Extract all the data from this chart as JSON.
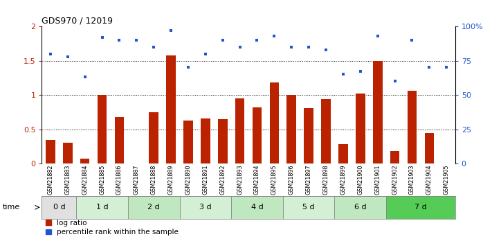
{
  "title": "GDS970 / 12019",
  "samples": [
    "GSM21882",
    "GSM21883",
    "GSM21884",
    "GSM21885",
    "GSM21886",
    "GSM21887",
    "GSM21888",
    "GSM21889",
    "GSM21890",
    "GSM21891",
    "GSM21892",
    "GSM21893",
    "GSM21894",
    "GSM21895",
    "GSM21896",
    "GSM21897",
    "GSM21898",
    "GSM21899",
    "GSM21900",
    "GSM21901",
    "GSM21902",
    "GSM21903",
    "GSM21904",
    "GSM21905"
  ],
  "log_ratio": [
    0.35,
    0.31,
    0.07,
    1.0,
    0.68,
    0.0,
    0.75,
    1.58,
    0.63,
    0.66,
    0.65,
    0.95,
    0.82,
    1.18,
    1.0,
    0.81,
    0.94,
    0.29,
    1.02,
    1.5,
    0.18,
    1.06,
    0.45,
    0.0
  ],
  "percentile": [
    80,
    78,
    63,
    92,
    90,
    90,
    85,
    97,
    70,
    80,
    90,
    85,
    90,
    93,
    85,
    85,
    83,
    65,
    67,
    93,
    60,
    90,
    70,
    70
  ],
  "time_groups": [
    {
      "label": "0 d",
      "start": 0,
      "end": 2,
      "color": "#e0e0e0"
    },
    {
      "label": "1 d",
      "start": 2,
      "end": 5,
      "color": "#d4f0d4"
    },
    {
      "label": "2 d",
      "start": 5,
      "end": 8,
      "color": "#c0e8c0"
    },
    {
      "label": "3 d",
      "start": 8,
      "end": 11,
      "color": "#d4f0d4"
    },
    {
      "label": "4 d",
      "start": 11,
      "end": 14,
      "color": "#c0e8c0"
    },
    {
      "label": "5 d",
      "start": 14,
      "end": 17,
      "color": "#d4f0d4"
    },
    {
      "label": "6 d",
      "start": 17,
      "end": 20,
      "color": "#c0e8c0"
    },
    {
      "label": "7 d",
      "start": 20,
      "end": 24,
      "color": "#55cc55"
    }
  ],
  "bar_color": "#bb2200",
  "dot_color": "#2255cc",
  "ylim_left": [
    0,
    2
  ],
  "ylim_right": [
    0,
    100
  ],
  "yticks_left": [
    0,
    0.5,
    1.0,
    1.5,
    2
  ],
  "ytick_labels_left": [
    "0",
    "0.5",
    "1",
    "1.5",
    "2"
  ],
  "yticks_right": [
    0,
    25,
    50,
    75,
    100
  ],
  "ytick_labels_right": [
    "0",
    "25",
    "50",
    "75",
    "100%"
  ],
  "hlines": [
    0.5,
    1.0,
    1.5
  ],
  "legend_log": "log ratio",
  "legend_pct": "percentile rank within the sample"
}
